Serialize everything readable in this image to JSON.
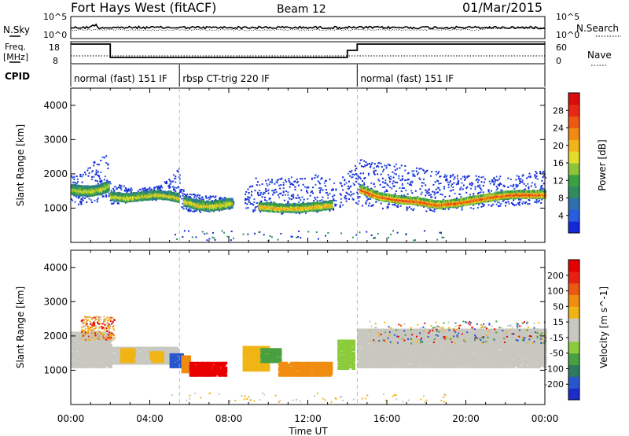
{
  "header": {
    "station": "Fort Hays West (fitACF)",
    "beam": "Beam 12",
    "date": "01/Mar/2015"
  },
  "strip_panels": {
    "nsky": {
      "label": "N.Sky",
      "tick_top": "10^5",
      "tick_bottom": "10^0"
    },
    "nsearch": {
      "label": "N.Search",
      "tick_top": "10^5",
      "tick_bottom": "10^0"
    },
    "freq": {
      "label_line1": "Freq.",
      "label_line2": "[MHz]",
      "tick_top": "18",
      "tick_bottom": "8"
    },
    "nave": {
      "label": "Nave",
      "tick_top": "60",
      "tick_bottom": "0"
    },
    "cpid": {
      "label": "CPID",
      "segments": [
        {
          "start": 0,
          "end": 5.5,
          "text": "normal (fast) 151 IF"
        },
        {
          "start": 5.5,
          "end": 14.5,
          "text": "rbsp CT-trig 220 IF"
        },
        {
          "start": 14.5,
          "end": 24,
          "text": "normal (fast) 151 IF"
        }
      ]
    }
  },
  "colorbars": {
    "power": {
      "label": "Power [dB]",
      "ticks": [
        "4",
        "8",
        "12",
        "16",
        "20",
        "24",
        "28"
      ],
      "colors": [
        "#1428d8",
        "#2a5ce0",
        "#2f6fb0",
        "#2e8c5e",
        "#3aa044",
        "#8cc43c",
        "#e4dc2a",
        "#f2b418",
        "#f08a14",
        "#ec5a12",
        "#e82814",
        "#dc0c0c"
      ]
    },
    "velocity": {
      "label": "Velocity [m s^-1]",
      "ticks": [
        "200",
        "100",
        "50",
        "15",
        "-15",
        "-50",
        "-100",
        "-200"
      ],
      "colors": [
        "#1c2cc8",
        "#2856cc",
        "#2d7a5e",
        "#48a040",
        "#8ccc3c",
        "#c8c8c0",
        "#c8c8c0",
        "#f0b414",
        "#f08c10",
        "#ec5812",
        "#e82010",
        "#e80000"
      ]
    }
  },
  "chart_data": [
    {
      "type": "heatmap",
      "panel": "power",
      "xlabel": "",
      "ylabel": "Slant Range [km]",
      "xlim": [
        0,
        24
      ],
      "ylim": [
        0,
        4500
      ],
      "yticks": [
        "1000",
        "2000",
        "3000",
        "4000"
      ],
      "vertical_markers": [
        5.5,
        14.5
      ],
      "scatter_bands": [
        {
          "x": [
            0,
            0.3,
            0.8,
            1.3,
            1.8,
            2.0,
            2.5,
            3.0,
            3.5,
            4.0,
            4.5,
            5.0,
            5.5
          ],
          "lo": [
            1100,
            1100,
            1150,
            1200,
            1300,
            1150,
            1150,
            1200,
            1250,
            1250,
            1250,
            1300,
            1300
          ],
          "hi": [
            2000,
            2000,
            2200,
            2500,
            2600,
            1700,
            1700,
            1650,
            1600,
            1650,
            1700,
            1900,
            2200
          ]
        },
        {
          "x": [
            5.5,
            6.0,
            6.5,
            7.0,
            7.5,
            8.0,
            8.2
          ],
          "lo": [
            950,
            900,
            900,
            900,
            950,
            1000,
            1100
          ],
          "hi": [
            1600,
            1450,
            1400,
            1400,
            1350,
            1300,
            1250
          ]
        },
        {
          "x": [
            8.8,
            9.3,
            10.0,
            10.7,
            11.5,
            12.3,
            13.0,
            13.4
          ],
          "lo": [
            1000,
            900,
            850,
            850,
            850,
            900,
            900,
            1000
          ],
          "hi": [
            1500,
            1900,
            1850,
            1900,
            1950,
            2000,
            1900,
            1700
          ]
        },
        {
          "x": [
            13.6,
            13.9,
            14.2,
            14.5
          ],
          "lo": [
            1050,
            1100,
            1200,
            1100
          ],
          "hi": [
            1800,
            2100,
            2400,
            2300
          ]
        },
        {
          "x": [
            14.5,
            15.5,
            16.5,
            17.5,
            18.5,
            19.5,
            20.5,
            21.5,
            22.5,
            23.5,
            24.0
          ],
          "lo": [
            1100,
            1000,
            950,
            950,
            900,
            950,
            1000,
            1050,
            1100,
            1150,
            1150
          ],
          "hi": [
            2500,
            2400,
            2300,
            2200,
            2100,
            2000,
            2000,
            1950,
            2000,
            2100,
            2100
          ]
        }
      ],
      "bands": [
        {
          "x": [
            0,
            0.5,
            1.0,
            1.5,
            1.9
          ],
          "y": [
            1550,
            1500,
            1500,
            1550,
            1650
          ],
          "width": 280,
          "level": 0.55
        },
        {
          "x": [
            2.0,
            2.8,
            3.6,
            4.4,
            5.0,
            5.4
          ],
          "y": [
            1350,
            1300,
            1350,
            1400,
            1350,
            1300
          ],
          "width": 220,
          "level": 0.6
        },
        {
          "x": [
            5.7,
            6.3,
            7.0,
            7.6,
            8.1
          ],
          "y": [
            1200,
            1100,
            1050,
            1100,
            1150
          ],
          "width": 260,
          "level": 0.62
        },
        {
          "x": [
            9.5,
            10.5,
            11.5,
            12.5,
            13.2
          ],
          "y": [
            1050,
            1000,
            1000,
            1050,
            1100
          ],
          "width": 220,
          "level": 0.7
        },
        {
          "x": [
            14.6,
            15.5,
            16.5,
            17.5,
            18.5,
            19.5,
            20.5,
            21.5,
            22.5,
            23.5,
            24.0
          ],
          "y": [
            1550,
            1350,
            1250,
            1200,
            1100,
            1150,
            1250,
            1350,
            1400,
            1400,
            1400
          ],
          "width": 200,
          "level": 0.9
        }
      ]
    },
    {
      "type": "heatmap",
      "panel": "velocity",
      "xlabel": "Time UT",
      "ylabel": "Slant Range [km]",
      "xlim": [
        0,
        24
      ],
      "ylim": [
        0,
        4500
      ],
      "xticks": [
        "00:00",
        "04:00",
        "08:00",
        "12:00",
        "16:00",
        "20:00",
        "00:00"
      ],
      "yticks": [
        "1000",
        "2000",
        "3000",
        "4000"
      ],
      "vertical_markers": [
        5.5,
        14.5
      ],
      "regions": [
        {
          "x0": 0.0,
          "x1": 2.0,
          "y0": 1100,
          "y1": 2100,
          "color": "#c8c8c0"
        },
        {
          "x0": 1.9,
          "x1": 5.4,
          "y0": 1200,
          "y1": 1650,
          "color": "#c8c8c0"
        },
        {
          "x0": 2.5,
          "x1": 3.2,
          "y0": 1250,
          "y1": 1650,
          "color": "#f0b414"
        },
        {
          "x0": 4.0,
          "x1": 4.6,
          "y0": 1250,
          "y1": 1550,
          "color": "#f0b414"
        },
        {
          "x0": 5.0,
          "x1": 5.6,
          "y0": 1100,
          "y1": 1500,
          "color": "#2856cc"
        },
        {
          "x0": 5.6,
          "x1": 6.0,
          "y0": 950,
          "y1": 1400,
          "color": "#f08c10"
        },
        {
          "x0": 6.0,
          "x1": 7.8,
          "y0": 850,
          "y1": 1250,
          "color": "#e80000"
        },
        {
          "x0": 8.7,
          "x1": 10.0,
          "y0": 1000,
          "y1": 1700,
          "color": "#f0b414"
        },
        {
          "x0": 9.6,
          "x1": 10.6,
          "y0": 1250,
          "y1": 1650,
          "color": "#48a040"
        },
        {
          "x0": 10.5,
          "x1": 13.2,
          "y0": 850,
          "y1": 1250,
          "color": "#f08c10"
        },
        {
          "x0": 13.5,
          "x1": 14.3,
          "y0": 1050,
          "y1": 1900,
          "color": "#8ccc3c"
        },
        {
          "x0": 14.5,
          "x1": 24.0,
          "y0": 1100,
          "y1": 2200,
          "color": "#c8c8c0"
        }
      ],
      "scatter": [
        {
          "x0": 0.5,
          "x1": 2.2,
          "y0": 1900,
          "y1": 2600,
          "colors": [
            "#e80000",
            "#f0b414",
            "#f08c10",
            "#c8c8c0"
          ]
        },
        {
          "x0": 15.0,
          "x1": 24.0,
          "y0": 1800,
          "y1": 2450,
          "colors": [
            "#f0b414",
            "#e80000",
            "#2856cc",
            "#48a040",
            "#c8c8c0"
          ]
        }
      ]
    }
  ]
}
